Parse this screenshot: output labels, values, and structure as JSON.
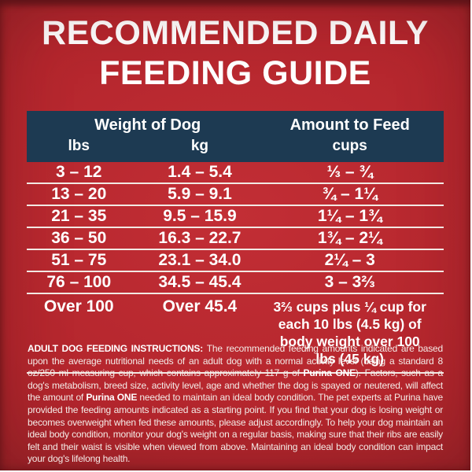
{
  "title": {
    "line1": "RECOMMENDED DAILY",
    "line2": "FEEDING GUIDE"
  },
  "table": {
    "header": {
      "weight_group": "Weight of Dog",
      "amount_group": "Amount to Feed",
      "columns": [
        "lbs",
        "kg",
        "cups"
      ]
    },
    "rows": [
      {
        "lbs": "3 – 12",
        "kg": "1.4 – 5.4",
        "cups": "⅓ – ¾"
      },
      {
        "lbs": "13 – 20",
        "kg": "5.9 – 9.1",
        "cups": "¾ – 1¼"
      },
      {
        "lbs": "21 – 35",
        "kg": "9.5 – 15.9",
        "cups": "1¼ – 1¾"
      },
      {
        "lbs": "36 – 50",
        "kg": "16.3 – 22.7",
        "cups": "1¾ – 2¼"
      },
      {
        "lbs": "51 – 75",
        "kg": "23.1 – 34.0",
        "cups": "2¼ – 3"
      },
      {
        "lbs": "76 – 100",
        "kg": "34.5 – 45.4",
        "cups": "3 – 3⅔"
      },
      {
        "lbs": "Over 100",
        "kg": "Over 45.4",
        "cups": "3⅔ cups plus ¼ cup for each 10 lbs (4.5 kg) of body weight over 100 lbs (45 kg)"
      }
    ]
  },
  "instructions": {
    "segments": [
      {
        "bold": true,
        "text": "ADULT DOG FEEDING INSTRUCTIONS: "
      },
      {
        "bold": false,
        "text": "The recommended feeding amounts indicated are based upon the average nutritional needs of an adult dog with a normal activity level (using a standard 8 oz/250 ml measuring cup, which contains approximately 117 g of "
      },
      {
        "bold": true,
        "text": "Purina ONE"
      },
      {
        "bold": false,
        "text": "). Factors, such as a dog's metabolism, breed size, activity level, age and whether the dog is spayed or neutered, will affect the amount of "
      },
      {
        "bold": true,
        "text": "Purina ONE"
      },
      {
        "bold": false,
        "text": " needed to maintain an ideal body condition. The pet experts at Purina have provided the feeding amounts indicated as a starting point. If you find that your dog is losing weight or becomes overweight when fed these amounts, please adjust accordingly. To help your dog maintain an ideal body condition, monitor your dog's weight on a regular basis, making sure that their ribs are easily felt and their waist is visible when viewed from above. Maintaining an ideal body condition can impact your dog's lifelong health."
      }
    ]
  },
  "colors": {
    "red_bright": "#c22e35",
    "red_mid": "#b4262d",
    "red_dark": "#822026",
    "header_navy": "#1d3a52",
    "divider_cream": "#f2e8e3"
  }
}
